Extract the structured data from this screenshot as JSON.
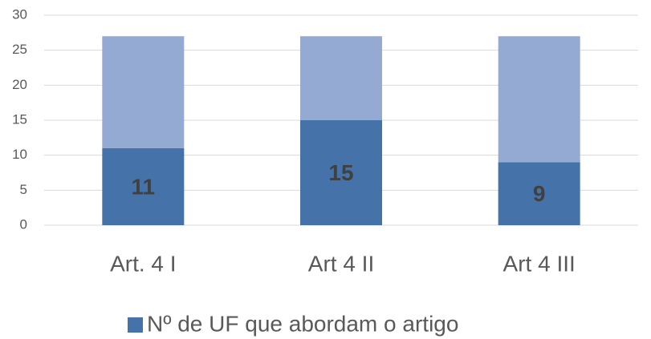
{
  "chart_data": {
    "type": "stacked-bar",
    "categories": [
      "Art. 4 I",
      "Art 4 II",
      "Art 4 III"
    ],
    "series": [
      {
        "name": "Nº de UF que abordam o artigo",
        "color": "#4573a9",
        "values": [
          11,
          15,
          9
        ]
      },
      {
        "color": "#94aad2",
        "values": [
          16,
          12,
          18
        ]
      }
    ],
    "ylim": [
      0,
      30
    ],
    "yticks": [
      0,
      5,
      10,
      15,
      20,
      25,
      30
    ],
    "grid": true,
    "legend": "bottom"
  }
}
